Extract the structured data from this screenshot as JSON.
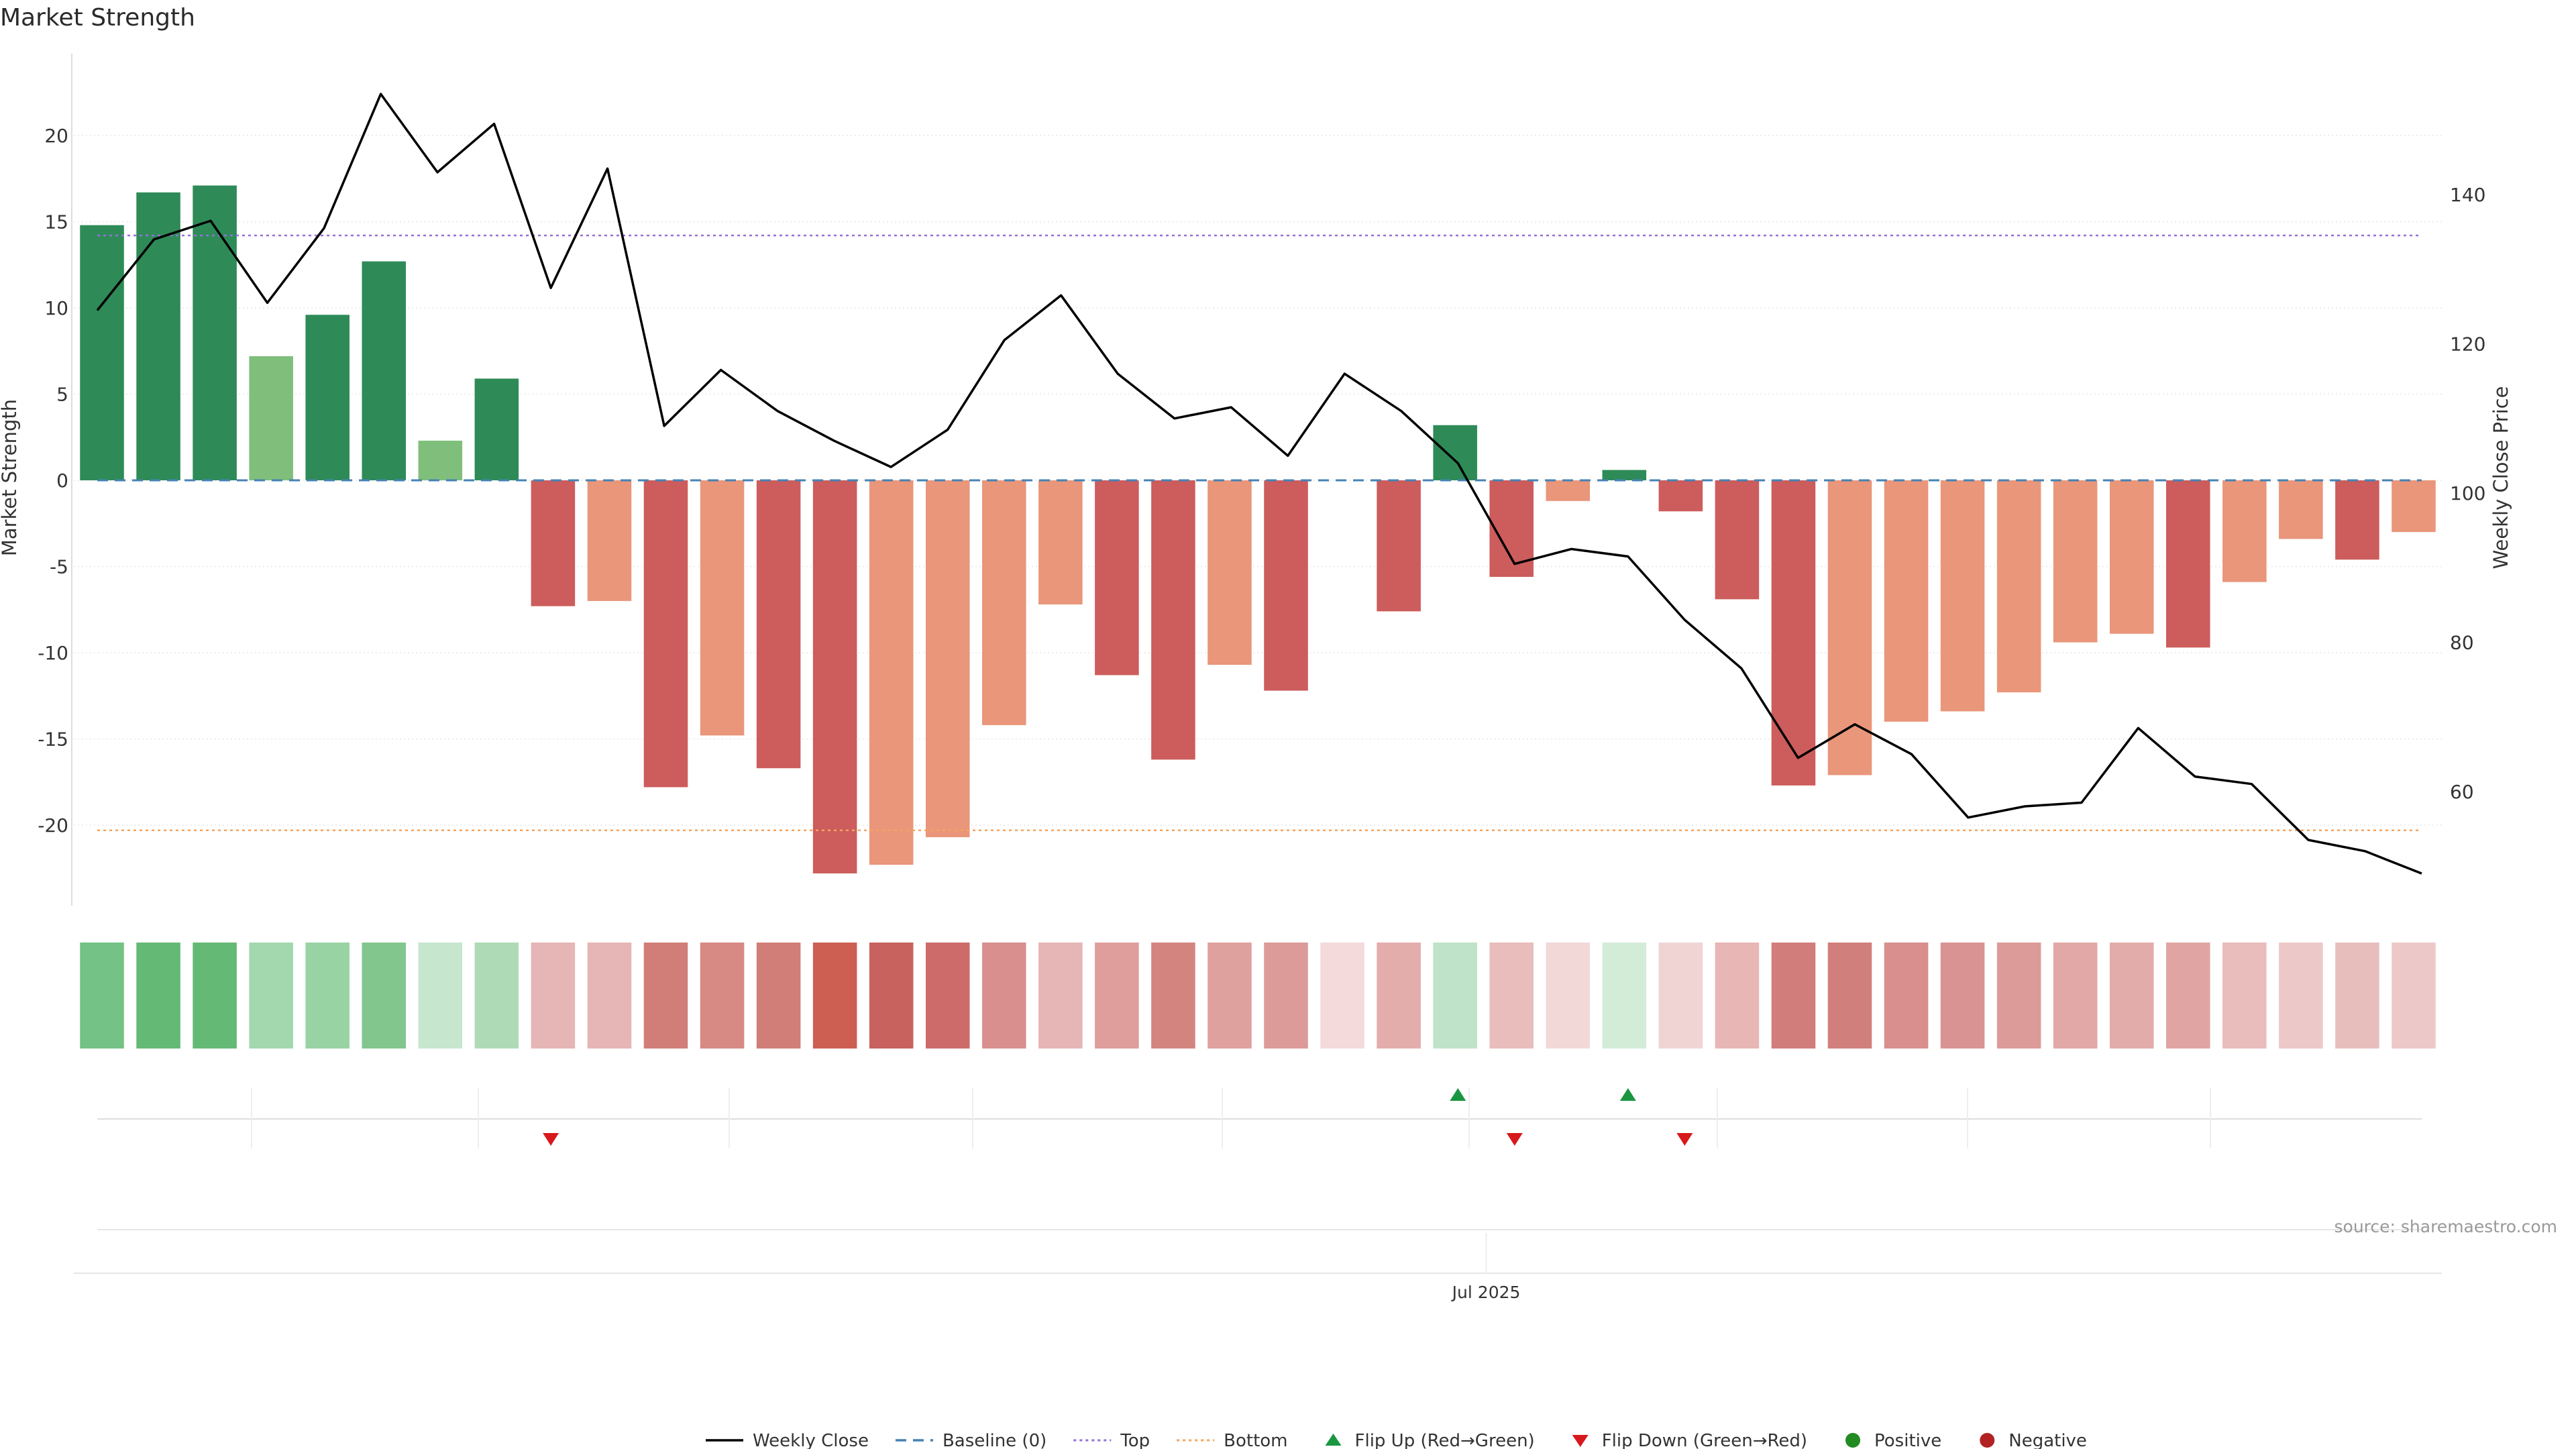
{
  "chart_data": {
    "type": "bar",
    "title": "Market Strength",
    "ylabel": "Market Strength",
    "ylabel_right": "Weekly Close Price",
    "ylim": [
      -24.5,
      24.5
    ],
    "ylim_right": [
      46,
      155
    ],
    "yticks": [
      20,
      15,
      10,
      5,
      0,
      -5,
      -10,
      -15,
      -20
    ],
    "yticks_right": [
      140,
      120,
      100,
      80,
      60
    ],
    "xtick_label": "Jul 2025",
    "xtick_index": 24.5,
    "source": "source: sharemaestro.com",
    "baseline": 0,
    "top_line": 14.2,
    "bottom_line": -20.3,
    "bars": [
      14.8,
      16.7,
      17.1,
      7.2,
      9.6,
      12.7,
      2.3,
      5.9,
      -7.3,
      -7.0,
      -17.8,
      -14.8,
      -16.7,
      -22.8,
      -22.3,
      -20.7,
      -14.2,
      -7.2,
      -11.3,
      -16.2,
      -10.7,
      -12.2,
      0.0,
      -7.6,
      3.2,
      -5.6,
      -1.2,
      0.6,
      -1.8,
      -6.9,
      -17.7,
      -17.1,
      -14.0,
      -13.4,
      -12.3,
      -9.4,
      -8.9,
      -9.7,
      -5.9,
      -3.4,
      -4.6,
      -3.0
    ],
    "bar_colors": [
      "#2e8b57",
      "#2e8b57",
      "#2e8b57",
      "#7fbf7b",
      "#2e8b57",
      "#2e8b57",
      "#7fbf7b",
      "#2e8b57",
      "#cd5c5c",
      "#e9967a",
      "#cd5c5c",
      "#e9967a",
      "#cd5c5c",
      "#cd5c5c",
      "#e9967a",
      "#e9967a",
      "#e9967a",
      "#e9967a",
      "#cd5c5c",
      "#cd5c5c",
      "#e9967a",
      "#cd5c5c",
      "#cd5c5c",
      "#cd5c5c",
      "#2e8b57",
      "#cd5c5c",
      "#e9967a",
      "#2e8b57",
      "#cd5c5c",
      "#cd5c5c",
      "#cd5c5c",
      "#e9967a",
      "#e9967a",
      "#e9967a",
      "#e9967a",
      "#e9967a",
      "#e9967a",
      "#cd5c5c",
      "#e9967a",
      "#e9967a",
      "#cd5c5c",
      "#e9967a"
    ],
    "heat_colors": [
      "#74c285",
      "#64b975",
      "#64b975",
      "#a3d8ae",
      "#98d3a4",
      "#82c68e",
      "#c6e6ce",
      "#aedbb6",
      "#e6b5b5",
      "#e6b5b5",
      "#d17e79",
      "#d78984",
      "#d17e79",
      "#cc5f52",
      "#c7625f",
      "#cd6b6b",
      "#d88f8e",
      "#e6b5b5",
      "#df9d9c",
      "#d4847f",
      "#dfa19e",
      "#dc9a98",
      "#f4dada",
      "#e3adac",
      "#bfe3c8",
      "#e8bdbb",
      "#f2d8d7",
      "#d3ecd8",
      "#f0d4d4",
      "#e8b6b5",
      "#d07d7b",
      "#d17f7d",
      "#d88f8e",
      "#d99392",
      "#dc9a98",
      "#e1a8a7",
      "#e2acaa",
      "#e0a5a3",
      "#e8bdbb",
      "#ecc9c8",
      "#e8bebd",
      "#ecc9c8"
    ],
    "close": [
      124.5,
      134.0,
      136.5,
      125.5,
      135.5,
      153.5,
      143.0,
      149.5,
      127.5,
      143.5,
      109.0,
      116.5,
      111.0,
      107.0,
      103.5,
      108.5,
      120.5,
      126.5,
      116.0,
      110.0,
      111.5,
      105.0,
      116.0,
      111.0,
      104.0,
      90.5,
      92.5,
      91.5,
      83.0,
      76.5,
      64.5,
      69.0,
      65.0,
      56.5,
      58.0,
      58.5,
      68.5,
      62.0,
      61.0,
      53.5,
      52.0,
      49.0
    ],
    "flip_up": [
      24,
      27
    ],
    "flip_down": [
      8,
      25,
      28
    ],
    "legend": [
      {
        "label": "Weekly Close",
        "type": "line",
        "color": "#000000"
      },
      {
        "label": "Baseline (0)",
        "type": "dashed",
        "color": "#4682b4"
      },
      {
        "label": "Top",
        "type": "dotted",
        "color": "#9370db"
      },
      {
        "label": "Bottom",
        "type": "dotted",
        "color": "#f4a460"
      },
      {
        "label": "Flip Up (Red→Green)",
        "type": "triangle-up",
        "color": "#1a9641"
      },
      {
        "label": "Flip Down (Green→Red)",
        "type": "triangle-down",
        "color": "#d7191c"
      },
      {
        "label": "Positive",
        "type": "dot",
        "color": "#228b22"
      },
      {
        "label": "Negative",
        "type": "dot",
        "color": "#b22222"
      }
    ]
  }
}
